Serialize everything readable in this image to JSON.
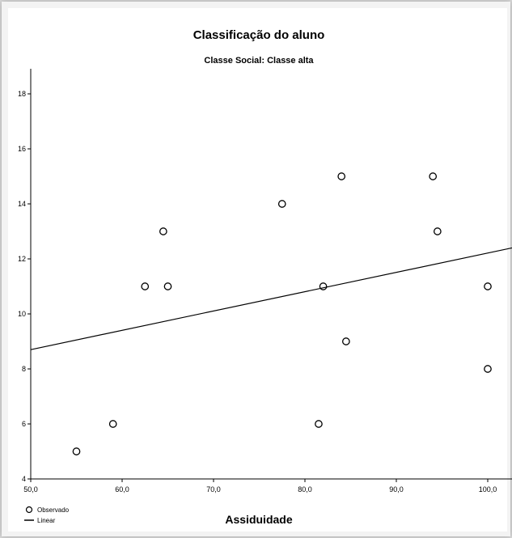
{
  "chart_data": {
    "type": "scatter",
    "title": "Classificação do aluno",
    "subtitle": "Classe Social: Classe alta",
    "xlabel": "Assiduidade",
    "ylabel": "",
    "xlim": [
      50,
      100
    ],
    "ylim": [
      4,
      18
    ],
    "x_ticks": [
      50,
      60,
      70,
      80,
      90,
      100
    ],
    "x_tick_labels": [
      "50,0",
      "60,0",
      "70,0",
      "80,0",
      "90,0",
      "100,0"
    ],
    "y_ticks": [
      4,
      6,
      8,
      10,
      12,
      14,
      16,
      18
    ],
    "y_tick_labels": [
      "4",
      "6",
      "8",
      "10",
      "12",
      "14",
      "16",
      "18"
    ],
    "grid": false,
    "legend": {
      "position": "bottom-left",
      "observed": "Observado",
      "fit": "Linear"
    },
    "points": [
      {
        "x": 55,
        "y": 5
      },
      {
        "x": 59,
        "y": 6
      },
      {
        "x": 62.5,
        "y": 11
      },
      {
        "x": 64.5,
        "y": 13
      },
      {
        "x": 65,
        "y": 11
      },
      {
        "x": 77.5,
        "y": 14
      },
      {
        "x": 81.5,
        "y": 6
      },
      {
        "x": 82,
        "y": 11
      },
      {
        "x": 84,
        "y": 15
      },
      {
        "x": 84.5,
        "y": 9
      },
      {
        "x": 94,
        "y": 15
      },
      {
        "x": 94.5,
        "y": 13
      },
      {
        "x": 100,
        "y": 11
      },
      {
        "x": 100,
        "y": 8
      }
    ],
    "fit_line": {
      "x": [
        50,
        103.2
      ],
      "y": [
        8.7,
        12.4
      ]
    }
  }
}
